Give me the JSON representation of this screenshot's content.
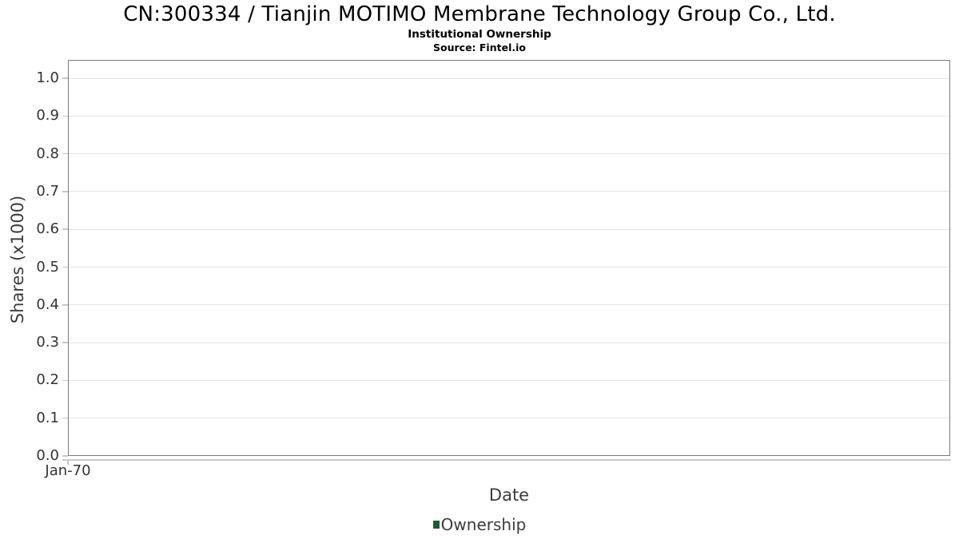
{
  "chart_data": {
    "type": "line",
    "title": "CN:300334 / Tianjin MOTIMO Membrane Technology Group Co., Ltd.",
    "subtitle": "Institutional Ownership",
    "source": "Source: Fintel.io",
    "xlabel": "Date",
    "ylabel": "Shares (x1000)",
    "x_tick_labels": [
      "Jan-70"
    ],
    "y_tick_labels": [
      "0.0",
      "0.1",
      "0.2",
      "0.3",
      "0.4",
      "0.5",
      "0.6",
      "0.7",
      "0.8",
      "0.9",
      "1.0"
    ],
    "y_tick_values": [
      0.0,
      0.1,
      0.2,
      0.3,
      0.4,
      0.5,
      0.6,
      0.7,
      0.8,
      0.9,
      1.0
    ],
    "ylim": [
      0.0,
      1.05
    ],
    "grid": true,
    "legend_position": "bottom-center",
    "series": [
      {
        "name": "Ownership",
        "color": "#1e5c31",
        "x": [],
        "values": []
      }
    ],
    "colors": {
      "plot_border": "#7a7a7a",
      "gridline": "#e5e5e5",
      "axis_line": "#c8c8c8",
      "tick_label": "#333333",
      "axis_title": "#3c3c3c",
      "title_text": "#000000",
      "legend_marker": "#1e5c31",
      "background": "#ffffff"
    }
  }
}
